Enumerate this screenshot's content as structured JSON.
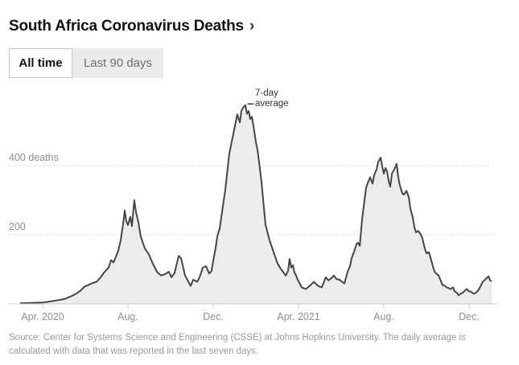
{
  "header": {
    "title": "South Africa Coronavirus Deaths",
    "arrow": "›"
  },
  "tabs": [
    {
      "label": "All time",
      "active": true
    },
    {
      "label": "Last 90 days",
      "active": false
    }
  ],
  "annotation": {
    "line1": "7-day",
    "line2": "average"
  },
  "footer": {
    "source": "Source: Center for Systems Science and Engineering (CSSE) at Johns Hopkins University. The daily average is calculated with data that was reported in the last seven days."
  },
  "colors": {
    "line": "#454545",
    "fill": "#ececec",
    "grid": "#d2d2d2",
    "axis": "#cccccc",
    "tick_label": "#8f8f8f",
    "title_text": "#121212",
    "footer_text": "#9b9b9b",
    "tab_inactive_bg": "#ebebeb",
    "tab_border": "#c9c9c9"
  },
  "chart_data": {
    "type": "area",
    "title": "South Africa Coronavirus Deaths",
    "series_name": "7-day average of daily reported deaths",
    "unit": "deaths",
    "x_unit": "months since Jan 1 2020 (fractional; 3 = Apr. 2020, 23 = Dec. 2021)",
    "xlim": [
      1.6,
      24.3
    ],
    "ylim": [
      0,
      620
    ],
    "grid": "horizontal-dotted",
    "legend": "none",
    "x_ticks": [
      {
        "m": 3,
        "label": "Apr. 2020"
      },
      {
        "m": 7,
        "label": "Aug."
      },
      {
        "m": 11,
        "label": "Dec."
      },
      {
        "m": 15,
        "label": "Apr. 2021"
      },
      {
        "m": 19,
        "label": "Aug."
      },
      {
        "m": 23,
        "label": "Dec."
      }
    ],
    "y_ticks": [
      {
        "v": 200,
        "label": "200"
      },
      {
        "v": 400,
        "label": "400 deaths"
      }
    ],
    "peak_annotation_value": 575,
    "points": [
      [
        1.94,
        2
      ],
      [
        2.51,
        3
      ],
      [
        3.0,
        4
      ],
      [
        3.26,
        6
      ],
      [
        3.64,
        10
      ],
      [
        4.02,
        14
      ],
      [
        4.4,
        24
      ],
      [
        4.58,
        30
      ],
      [
        4.77,
        38
      ],
      [
        4.96,
        50
      ],
      [
        5.15,
        55
      ],
      [
        5.34,
        60
      ],
      [
        5.53,
        64
      ],
      [
        5.72,
        77
      ],
      [
        5.91,
        93
      ],
      [
        6.09,
        105
      ],
      [
        6.21,
        127
      ],
      [
        6.32,
        120
      ],
      [
        6.43,
        135
      ],
      [
        6.55,
        155
      ],
      [
        6.66,
        184
      ],
      [
        6.77,
        230
      ],
      [
        6.85,
        270
      ],
      [
        6.92,
        240
      ],
      [
        7.0,
        228
      ],
      [
        7.11,
        252
      ],
      [
        7.19,
        225
      ],
      [
        7.3,
        300
      ],
      [
        7.38,
        265
      ],
      [
        7.49,
        236
      ],
      [
        7.6,
        195
      ],
      [
        7.79,
        161
      ],
      [
        7.98,
        143
      ],
      [
        8.17,
        116
      ],
      [
        8.36,
        93
      ],
      [
        8.55,
        82
      ],
      [
        8.74,
        86
      ],
      [
        8.92,
        93
      ],
      [
        9.04,
        77
      ],
      [
        9.19,
        90
      ],
      [
        9.38,
        139
      ],
      [
        9.49,
        132
      ],
      [
        9.68,
        82
      ],
      [
        9.94,
        52
      ],
      [
        10.06,
        70
      ],
      [
        10.25,
        64
      ],
      [
        10.36,
        77
      ],
      [
        10.51,
        105
      ],
      [
        10.66,
        109
      ],
      [
        10.81,
        88
      ],
      [
        10.92,
        95
      ],
      [
        11.04,
        139
      ],
      [
        11.11,
        160
      ],
      [
        11.19,
        195
      ],
      [
        11.3,
        218
      ],
      [
        11.38,
        252
      ],
      [
        11.57,
        332
      ],
      [
        11.75,
        434
      ],
      [
        11.94,
        491
      ],
      [
        12.13,
        548
      ],
      [
        12.25,
        525
      ],
      [
        12.32,
        559
      ],
      [
        12.43,
        570
      ],
      [
        12.51,
        575
      ],
      [
        12.58,
        550
      ],
      [
        12.66,
        558
      ],
      [
        12.74,
        535
      ],
      [
        12.81,
        541
      ],
      [
        12.89,
        514
      ],
      [
        13.0,
        468
      ],
      [
        13.08,
        445
      ],
      [
        13.26,
        355
      ],
      [
        13.45,
        230
      ],
      [
        13.64,
        184
      ],
      [
        13.83,
        150
      ],
      [
        14.02,
        116
      ],
      [
        14.21,
        98
      ],
      [
        14.4,
        82
      ],
      [
        14.51,
        95
      ],
      [
        14.58,
        130
      ],
      [
        14.66,
        105
      ],
      [
        14.74,
        112
      ],
      [
        14.81,
        90
      ],
      [
        14.89,
        82
      ],
      [
        14.96,
        70
      ],
      [
        15.15,
        48
      ],
      [
        15.34,
        43
      ],
      [
        15.53,
        52
      ],
      [
        15.72,
        64
      ],
      [
        15.91,
        52
      ],
      [
        16.09,
        48
      ],
      [
        16.28,
        77
      ],
      [
        16.4,
        68
      ],
      [
        16.55,
        75
      ],
      [
        16.66,
        82
      ],
      [
        16.77,
        72
      ],
      [
        16.92,
        70
      ],
      [
        17.04,
        64
      ],
      [
        17.15,
        59
      ],
      [
        17.3,
        93
      ],
      [
        17.42,
        110
      ],
      [
        17.49,
        132
      ],
      [
        17.6,
        150
      ],
      [
        17.72,
        173
      ],
      [
        17.79,
        177
      ],
      [
        17.87,
        168
      ],
      [
        17.98,
        245
      ],
      [
        18.09,
        298
      ],
      [
        18.17,
        336
      ],
      [
        18.28,
        355
      ],
      [
        18.36,
        366
      ],
      [
        18.47,
        348
      ],
      [
        18.55,
        373
      ],
      [
        18.66,
        389
      ],
      [
        18.74,
        411
      ],
      [
        18.85,
        423
      ],
      [
        18.92,
        400
      ],
      [
        19.0,
        377
      ],
      [
        19.08,
        393
      ],
      [
        19.15,
        384
      ],
      [
        19.23,
        355
      ],
      [
        19.3,
        339
      ],
      [
        19.38,
        377
      ],
      [
        19.49,
        389
      ],
      [
        19.6,
        405
      ],
      [
        19.68,
        366
      ],
      [
        19.75,
        343
      ],
      [
        19.87,
        320
      ],
      [
        19.94,
        316
      ],
      [
        20.06,
        327
      ],
      [
        20.17,
        309
      ],
      [
        20.25,
        275
      ],
      [
        20.36,
        250
      ],
      [
        20.43,
        223
      ],
      [
        20.51,
        207
      ],
      [
        20.62,
        211
      ],
      [
        20.74,
        200
      ],
      [
        20.81,
        189
      ],
      [
        20.92,
        161
      ],
      [
        21.0,
        146
      ],
      [
        21.11,
        150
      ],
      [
        21.19,
        134
      ],
      [
        21.3,
        109
      ],
      [
        21.38,
        93
      ],
      [
        21.49,
        86
      ],
      [
        21.57,
        82
      ],
      [
        21.68,
        66
      ],
      [
        21.75,
        55
      ],
      [
        21.87,
        52
      ],
      [
        21.94,
        48
      ],
      [
        22.06,
        45
      ],
      [
        22.13,
        43
      ],
      [
        22.25,
        48
      ],
      [
        22.32,
        36
      ],
      [
        22.43,
        32
      ],
      [
        22.51,
        25
      ],
      [
        22.62,
        30
      ],
      [
        22.7,
        32
      ],
      [
        22.81,
        39
      ],
      [
        22.89,
        43
      ],
      [
        23.0,
        36
      ],
      [
        23.08,
        36
      ],
      [
        23.19,
        30
      ],
      [
        23.26,
        30
      ],
      [
        23.38,
        36
      ],
      [
        23.45,
        41
      ],
      [
        23.57,
        55
      ],
      [
        23.64,
        64
      ],
      [
        23.75,
        70
      ],
      [
        23.83,
        75
      ],
      [
        23.91,
        80
      ],
      [
        23.98,
        68
      ],
      [
        24.06,
        66
      ]
    ]
  }
}
